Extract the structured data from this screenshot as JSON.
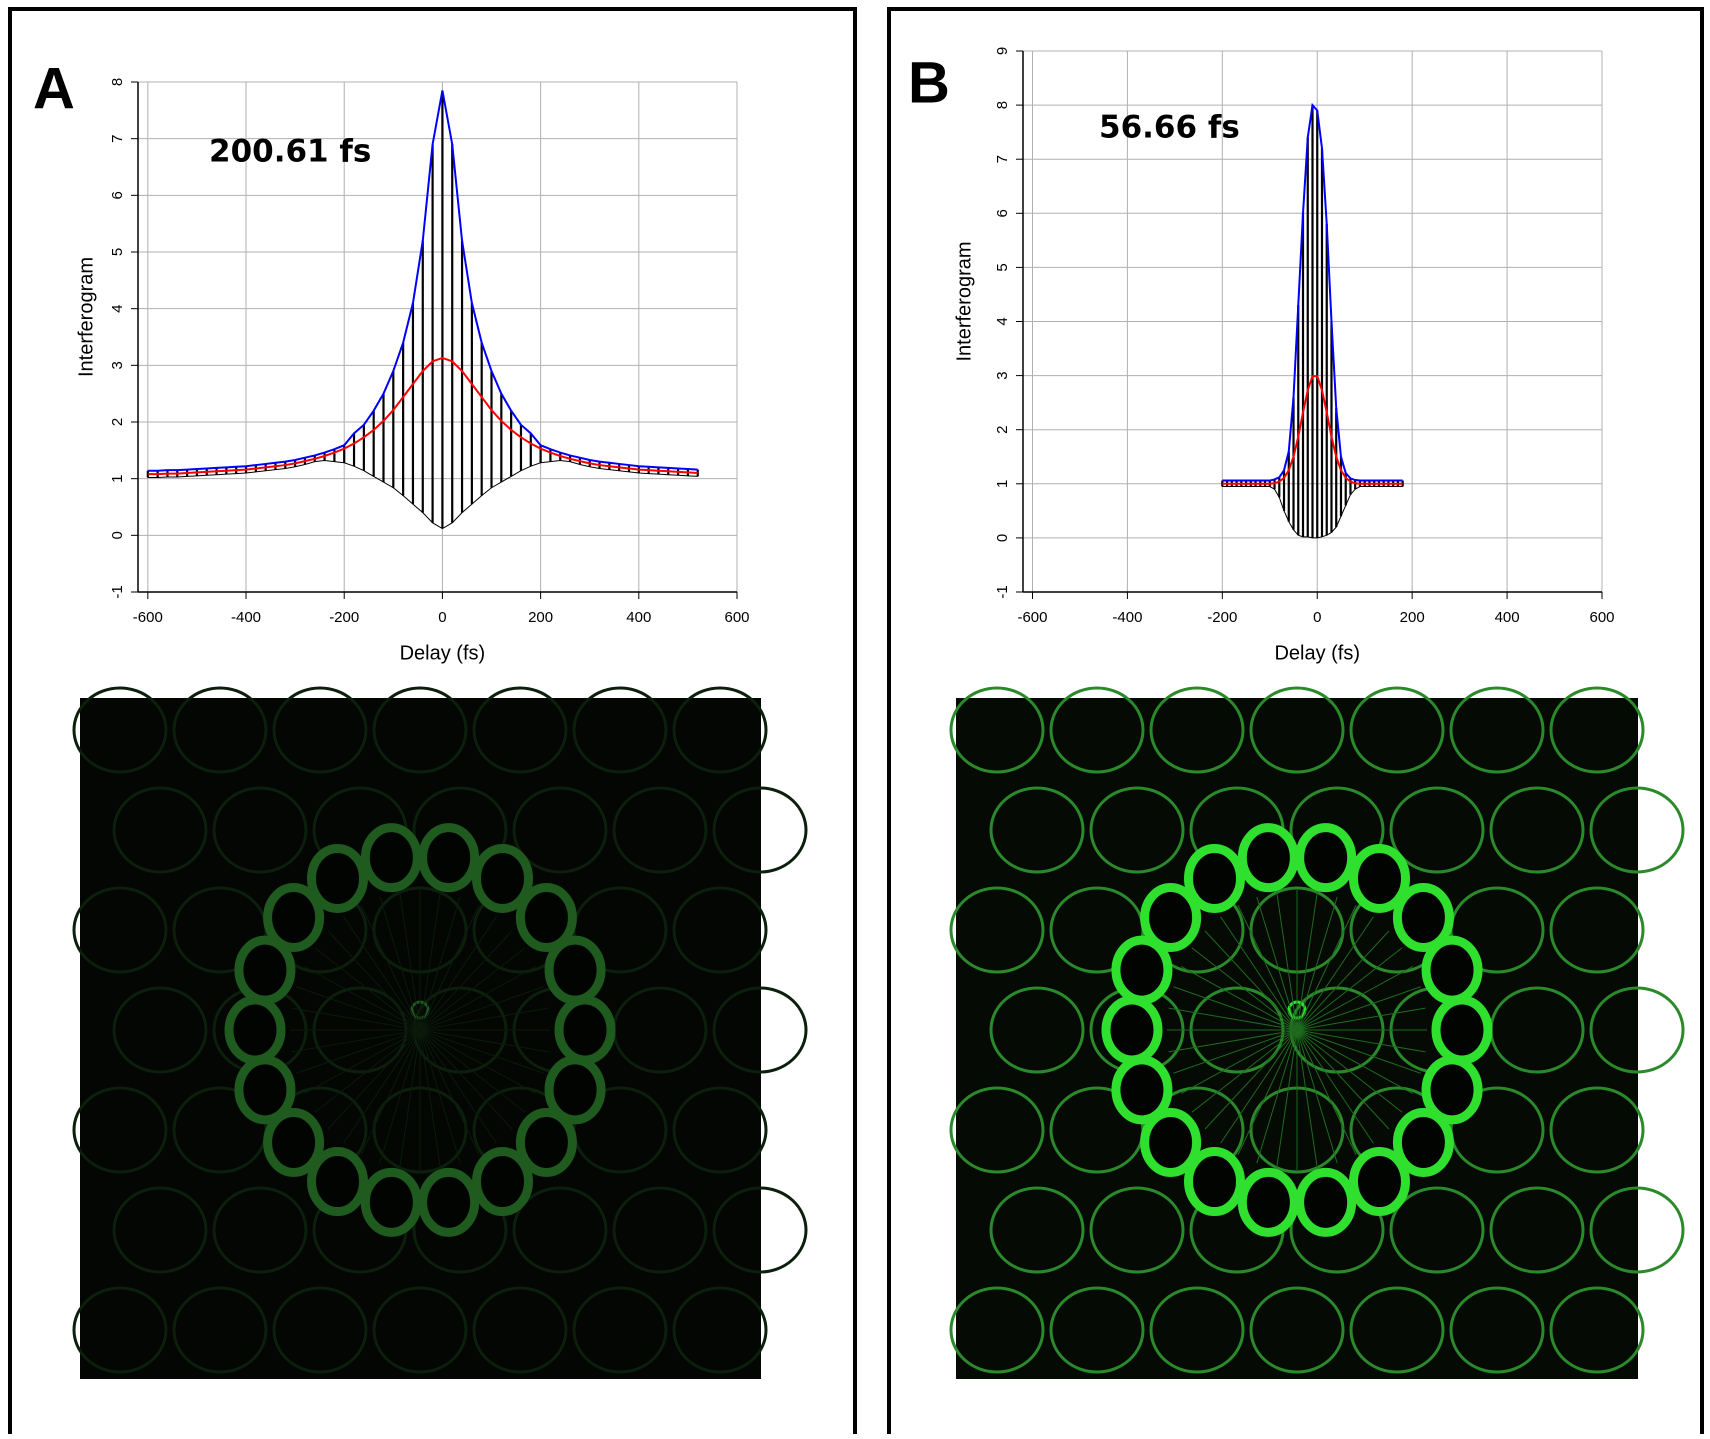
{
  "chart_data": [
    {
      "type": "line",
      "panel_label": "A",
      "annotation": "200.61 fs",
      "xlabel": "Delay (fs)",
      "ylabel": "Interferogram",
      "xlim": [
        -620,
        600
      ],
      "ylim": [
        -1,
        8
      ],
      "xticks": [
        -600,
        -400,
        -200,
        0,
        200,
        400,
        600
      ],
      "yticks": [
        -1,
        0,
        1,
        2,
        3,
        4,
        5,
        6,
        7,
        8
      ],
      "grid": true,
      "x": [
        -600,
        -580,
        -560,
        -540,
        -520,
        -500,
        -480,
        -460,
        -440,
        -420,
        -400,
        -380,
        -360,
        -340,
        -320,
        -300,
        -280,
        -260,
        -240,
        -220,
        -200,
        -180,
        -160,
        -140,
        -120,
        -100,
        -80,
        -60,
        -40,
        -20,
        0,
        20,
        40,
        60,
        80,
        100,
        120,
        140,
        160,
        180,
        200,
        220,
        240,
        260,
        280,
        300,
        320,
        340,
        360,
        380,
        400,
        420,
        440,
        460,
        480,
        500,
        520
      ],
      "series": [
        {
          "color": "#000000",
          "values": [
            1.02,
            1.02,
            1.03,
            1.03,
            1.04,
            1.05,
            1.06,
            1.07,
            1.08,
            1.09,
            1.1,
            1.12,
            1.14,
            1.16,
            1.18,
            1.21,
            1.25,
            1.3,
            1.32,
            1.3,
            1.28,
            1.22,
            1.14,
            1.04,
            0.94,
            0.84,
            0.7,
            0.55,
            0.4,
            0.22,
            0.12,
            0.22,
            0.4,
            0.55,
            0.7,
            0.84,
            0.94,
            1.04,
            1.14,
            1.22,
            1.28,
            1.3,
            1.32,
            1.3,
            1.25,
            1.21,
            1.18,
            1.16,
            1.14,
            1.12,
            1.1,
            1.09,
            1.08,
            1.07,
            1.06,
            1.05,
            1.04
          ]
        },
        {
          "color": "#0000ff",
          "values": [
            1.14,
            1.14,
            1.15,
            1.15,
            1.16,
            1.17,
            1.18,
            1.19,
            1.2,
            1.21,
            1.22,
            1.24,
            1.26,
            1.28,
            1.3,
            1.33,
            1.37,
            1.41,
            1.46,
            1.52,
            1.59,
            1.8,
            1.95,
            2.2,
            2.5,
            2.9,
            3.4,
            4.1,
            5.2,
            6.9,
            7.85,
            6.9,
            5.2,
            4.1,
            3.4,
            2.9,
            2.5,
            2.2,
            1.95,
            1.8,
            1.59,
            1.52,
            1.46,
            1.41,
            1.37,
            1.33,
            1.3,
            1.28,
            1.26,
            1.24,
            1.22,
            1.21,
            1.2,
            1.19,
            1.18,
            1.17,
            1.16
          ]
        },
        {
          "color": "#ff0000",
          "values": [
            1.08,
            1.08,
            1.09,
            1.09,
            1.1,
            1.11,
            1.12,
            1.13,
            1.14,
            1.15,
            1.16,
            1.18,
            1.2,
            1.22,
            1.24,
            1.27,
            1.31,
            1.35,
            1.4,
            1.46,
            1.53,
            1.62,
            1.73,
            1.86,
            2.02,
            2.21,
            2.44,
            2.67,
            2.9,
            3.07,
            3.13,
            3.07,
            2.9,
            2.67,
            2.44,
            2.21,
            2.02,
            1.86,
            1.73,
            1.62,
            1.53,
            1.46,
            1.4,
            1.35,
            1.31,
            1.27,
            1.24,
            1.22,
            1.2,
            1.18,
            1.16,
            1.15,
            1.14,
            1.13,
            1.12,
            1.11,
            1.1
          ]
        }
      ]
    },
    {
      "type": "line",
      "panel_label": "B",
      "annotation": "56.66 fs",
      "xlabel": "Delay (fs)",
      "ylabel": "Interferogram",
      "xlim": [
        -620,
        600
      ],
      "ylim": [
        -1,
        9
      ],
      "xticks": [
        -600,
        -400,
        -200,
        0,
        200,
        400,
        600
      ],
      "yticks": [
        -1,
        0,
        1,
        2,
        3,
        4,
        5,
        6,
        7,
        8,
        9
      ],
      "grid": true,
      "x": [
        -200,
        -190,
        -180,
        -170,
        -160,
        -150,
        -140,
        -130,
        -120,
        -110,
        -100,
        -90,
        -80,
        -70,
        -60,
        -50,
        -40,
        -30,
        -20,
        -10,
        0,
        10,
        20,
        30,
        40,
        50,
        60,
        70,
        80,
        90,
        100,
        110,
        120,
        130,
        140,
        150,
        160,
        170,
        180
      ],
      "series": [
        {
          "color": "#000000",
          "values": [
            0.95,
            0.95,
            0.95,
            0.95,
            0.95,
            0.95,
            0.95,
            0.95,
            0.95,
            0.95,
            0.95,
            0.9,
            0.75,
            0.5,
            0.3,
            0.15,
            0.05,
            0.02,
            0.02,
            0.0,
            0.0,
            0.02,
            0.05,
            0.1,
            0.2,
            0.4,
            0.6,
            0.8,
            0.9,
            0.95,
            0.95,
            0.95,
            0.95,
            0.95,
            0.95,
            0.95,
            0.95,
            0.95,
            0.95
          ]
        },
        {
          "color": "#0000ff",
          "values": [
            1.06,
            1.06,
            1.06,
            1.06,
            1.06,
            1.06,
            1.06,
            1.06,
            1.06,
            1.06,
            1.06,
            1.08,
            1.12,
            1.25,
            1.6,
            2.6,
            4.3,
            6.0,
            7.4,
            8.0,
            7.9,
            7.2,
            5.8,
            4.0,
            2.4,
            1.5,
            1.2,
            1.1,
            1.07,
            1.06,
            1.06,
            1.06,
            1.06,
            1.06,
            1.06,
            1.06,
            1.06,
            1.06,
            1.06
          ]
        },
        {
          "color": "#ff0000",
          "values": [
            1.0,
            1.0,
            1.0,
            1.0,
            1.0,
            1.0,
            1.0,
            1.0,
            1.0,
            1.0,
            1.0,
            1.01,
            1.04,
            1.11,
            1.25,
            1.5,
            1.87,
            2.32,
            2.73,
            2.99,
            2.99,
            2.73,
            2.32,
            1.87,
            1.5,
            1.25,
            1.11,
            1.04,
            1.01,
            1.0,
            1.0,
            1.0,
            1.0,
            1.0,
            1.0,
            1.0,
            1.0,
            1.0,
            1.0
          ]
        }
      ]
    }
  ]
}
